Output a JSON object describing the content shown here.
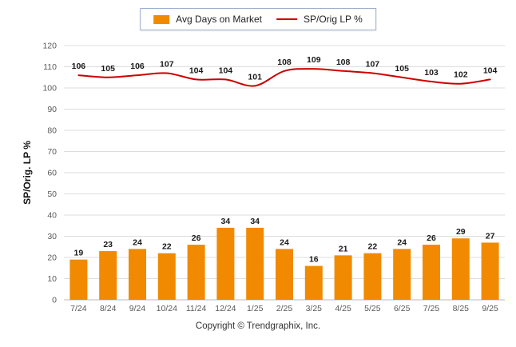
{
  "footer": "Copyright © Trendgraphix, Inc.",
  "chart_data": {
    "type": "combo",
    "categories": [
      "7/24",
      "8/24",
      "9/24",
      "10/24",
      "11/24",
      "12/24",
      "1/25",
      "2/25",
      "3/25",
      "4/25",
      "5/25",
      "6/25",
      "7/25",
      "8/25",
      "9/25"
    ],
    "series": [
      {
        "name": "Avg Days on Market",
        "type": "bar",
        "color": "#F18A00",
        "values": [
          19,
          23,
          24,
          22,
          26,
          34,
          34,
          24,
          16,
          21,
          22,
          24,
          26,
          29,
          27
        ]
      },
      {
        "name": "SP/Orig LP %",
        "type": "line",
        "color": "#CC0000",
        "values": [
          106,
          105,
          106,
          107,
          104,
          104,
          101,
          108,
          109,
          108,
          107,
          105,
          103,
          102,
          104
        ]
      }
    ],
    "title": "",
    "xlabel": "",
    "ylabel": "SP/Orig. LP %",
    "ylim": [
      0,
      120
    ],
    "ytick_step": 10,
    "grid": true,
    "legend_position": "top",
    "label_color": "#1a1a1a",
    "tick_color": "#595959",
    "grid_color": "#DDDDDD",
    "axis_color": "#BBBBBB"
  }
}
